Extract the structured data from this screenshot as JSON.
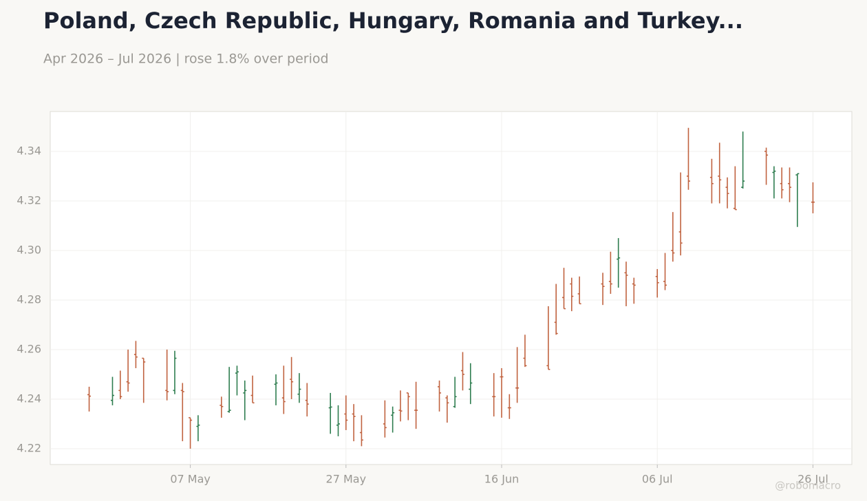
{
  "chart_data": {
    "type": "ohlc",
    "title": "Poland, Czech Republic, Hungary, Romania and Turkey...",
    "subtitle": "Apr 2026 – Jul 2026 | rose 1.8% over period",
    "watermark": "@robomacro",
    "up_color": "#2e7d4f",
    "down_color": "#c0623f",
    "grid": true,
    "x": [
      "2026-04-24",
      "2026-04-27",
      "2026-04-28",
      "2026-04-29",
      "2026-04-30",
      "2026-05-01",
      "2026-05-04",
      "2026-05-05",
      "2026-05-06",
      "2026-05-07",
      "2026-05-08",
      "2026-05-11",
      "2026-05-12",
      "2026-05-13",
      "2026-05-14",
      "2026-05-15",
      "2026-05-18",
      "2026-05-19",
      "2026-05-20",
      "2026-05-21",
      "2026-05-22",
      "2026-05-25",
      "2026-05-26",
      "2026-05-27",
      "2026-05-28",
      "2026-05-29",
      "2026-06-01",
      "2026-06-02",
      "2026-06-03",
      "2026-06-04",
      "2026-06-05",
      "2026-06-08",
      "2026-06-09",
      "2026-06-10",
      "2026-06-11",
      "2026-06-12",
      "2026-06-15",
      "2026-06-16",
      "2026-06-17",
      "2026-06-18",
      "2026-06-19",
      "2026-06-22",
      "2026-06-23",
      "2026-06-24",
      "2026-06-25",
      "2026-06-26",
      "2026-06-29",
      "2026-06-30",
      "2026-07-01",
      "2026-07-02",
      "2026-07-03",
      "2026-07-06",
      "2026-07-07",
      "2026-07-08",
      "2026-07-09",
      "2026-07-10",
      "2026-07-13",
      "2026-07-14",
      "2026-07-15",
      "2026-07-16",
      "2026-07-17",
      "2026-07-20",
      "2026-07-21",
      "2026-07-22",
      "2026-07-23",
      "2026-07-24",
      "2026-07-26"
    ],
    "open": [
      4.2418,
      4.2395,
      4.2435,
      4.247,
      4.258,
      4.2565,
      4.2435,
      4.2435,
      4.2435,
      4.2325,
      4.229,
      4.2375,
      4.235,
      4.2505,
      4.2425,
      4.2415,
      4.246,
      4.2405,
      4.248,
      4.242,
      4.2395,
      4.2365,
      4.2295,
      4.234,
      4.234,
      4.2265,
      4.23,
      4.2335,
      4.2355,
      4.2425,
      4.2355,
      4.245,
      4.2405,
      4.237,
      4.2515,
      4.244,
      4.241,
      4.249,
      4.2365,
      4.2445,
      4.2565,
      4.2535,
      4.271,
      4.281,
      4.2865,
      4.2825,
      4.2865,
      4.2875,
      4.2965,
      4.291,
      4.2865,
      4.2895,
      4.2875,
      4.3,
      4.3075,
      4.33,
      4.3295,
      4.33,
      4.3255,
      4.317,
      4.3255,
      4.34,
      4.3315,
      4.327,
      4.327,
      4.3305,
      4.3195
    ],
    "high": [
      4.245,
      4.249,
      4.2515,
      4.26,
      4.2635,
      4.2565,
      4.26,
      4.2595,
      4.2465,
      4.2325,
      4.2335,
      4.241,
      4.253,
      4.2535,
      4.2475,
      4.2495,
      4.25,
      4.2535,
      4.257,
      4.2505,
      4.2465,
      4.2425,
      4.2375,
      4.2415,
      4.238,
      4.2335,
      4.2395,
      4.237,
      4.2435,
      4.2425,
      4.247,
      4.2475,
      4.2415,
      4.249,
      4.259,
      4.2545,
      4.2505,
      4.2525,
      4.242,
      4.261,
      4.266,
      4.2775,
      4.2865,
      4.293,
      4.289,
      4.2895,
      4.291,
      4.2995,
      4.305,
      4.2955,
      4.289,
      4.2925,
      4.299,
      4.3155,
      4.3315,
      4.3495,
      4.337,
      4.3435,
      4.3295,
      4.334,
      4.348,
      4.3415,
      4.334,
      4.3335,
      4.3335,
      4.331,
      4.3275
    ],
    "low": [
      4.235,
      4.2375,
      4.24,
      4.243,
      4.2525,
      4.2385,
      4.2395,
      4.242,
      4.223,
      4.22,
      4.223,
      4.2325,
      4.2345,
      4.2415,
      4.2315,
      4.2385,
      4.2375,
      4.234,
      4.24,
      4.2385,
      4.233,
      4.226,
      4.225,
      4.2275,
      4.223,
      4.221,
      4.2245,
      4.2265,
      4.231,
      4.2315,
      4.228,
      4.235,
      4.2305,
      4.2365,
      4.2435,
      4.238,
      4.233,
      4.2325,
      4.232,
      4.2385,
      4.253,
      4.252,
      4.266,
      4.2765,
      4.2755,
      4.2785,
      4.278,
      4.2825,
      4.285,
      4.2775,
      4.2785,
      4.281,
      4.284,
      4.2955,
      4.298,
      4.3245,
      4.319,
      4.319,
      4.317,
      4.3165,
      4.325,
      4.3265,
      4.321,
      4.321,
      4.3195,
      4.3095,
      4.315
    ],
    "close": [
      4.2412,
      4.2415,
      4.241,
      4.2465,
      4.257,
      4.255,
      4.243,
      4.2565,
      4.243,
      4.2315,
      4.2295,
      4.237,
      4.2355,
      4.251,
      4.2435,
      4.2385,
      4.2465,
      4.239,
      4.247,
      4.244,
      4.238,
      4.2368,
      4.23,
      4.2315,
      4.233,
      4.2235,
      4.2285,
      4.2345,
      4.2352,
      4.241,
      4.2355,
      4.2425,
      4.2385,
      4.241,
      4.25,
      4.2465,
      4.241,
      4.249,
      4.2365,
      4.2445,
      4.2535,
      4.252,
      4.2665,
      4.2765,
      4.2815,
      4.2785,
      4.2855,
      4.2865,
      4.297,
      4.29,
      4.286,
      4.287,
      4.286,
      4.299,
      4.303,
      4.328,
      4.327,
      4.3285,
      4.323,
      4.3165,
      4.328,
      4.3385,
      4.332,
      4.3245,
      4.3255,
      4.331,
      4.3195
    ],
    "xlim": [
      "2026-04-19",
      "2026-07-31"
    ],
    "xticks": [
      {
        "value": "2026-05-07",
        "label": "07 May"
      },
      {
        "value": "2026-05-27",
        "label": "27 May"
      },
      {
        "value": "2026-06-16",
        "label": "16 Jun"
      },
      {
        "value": "2026-07-06",
        "label": "06 Jul"
      },
      {
        "value": "2026-07-26",
        "label": "26 Jul"
      }
    ],
    "ylim": [
      4.2136,
      4.3561
    ],
    "yticks": [
      4.22,
      4.24,
      4.26,
      4.28,
      {
        "value": 4.3,
        "label": "4.30"
      },
      4.32,
      4.34
    ]
  }
}
